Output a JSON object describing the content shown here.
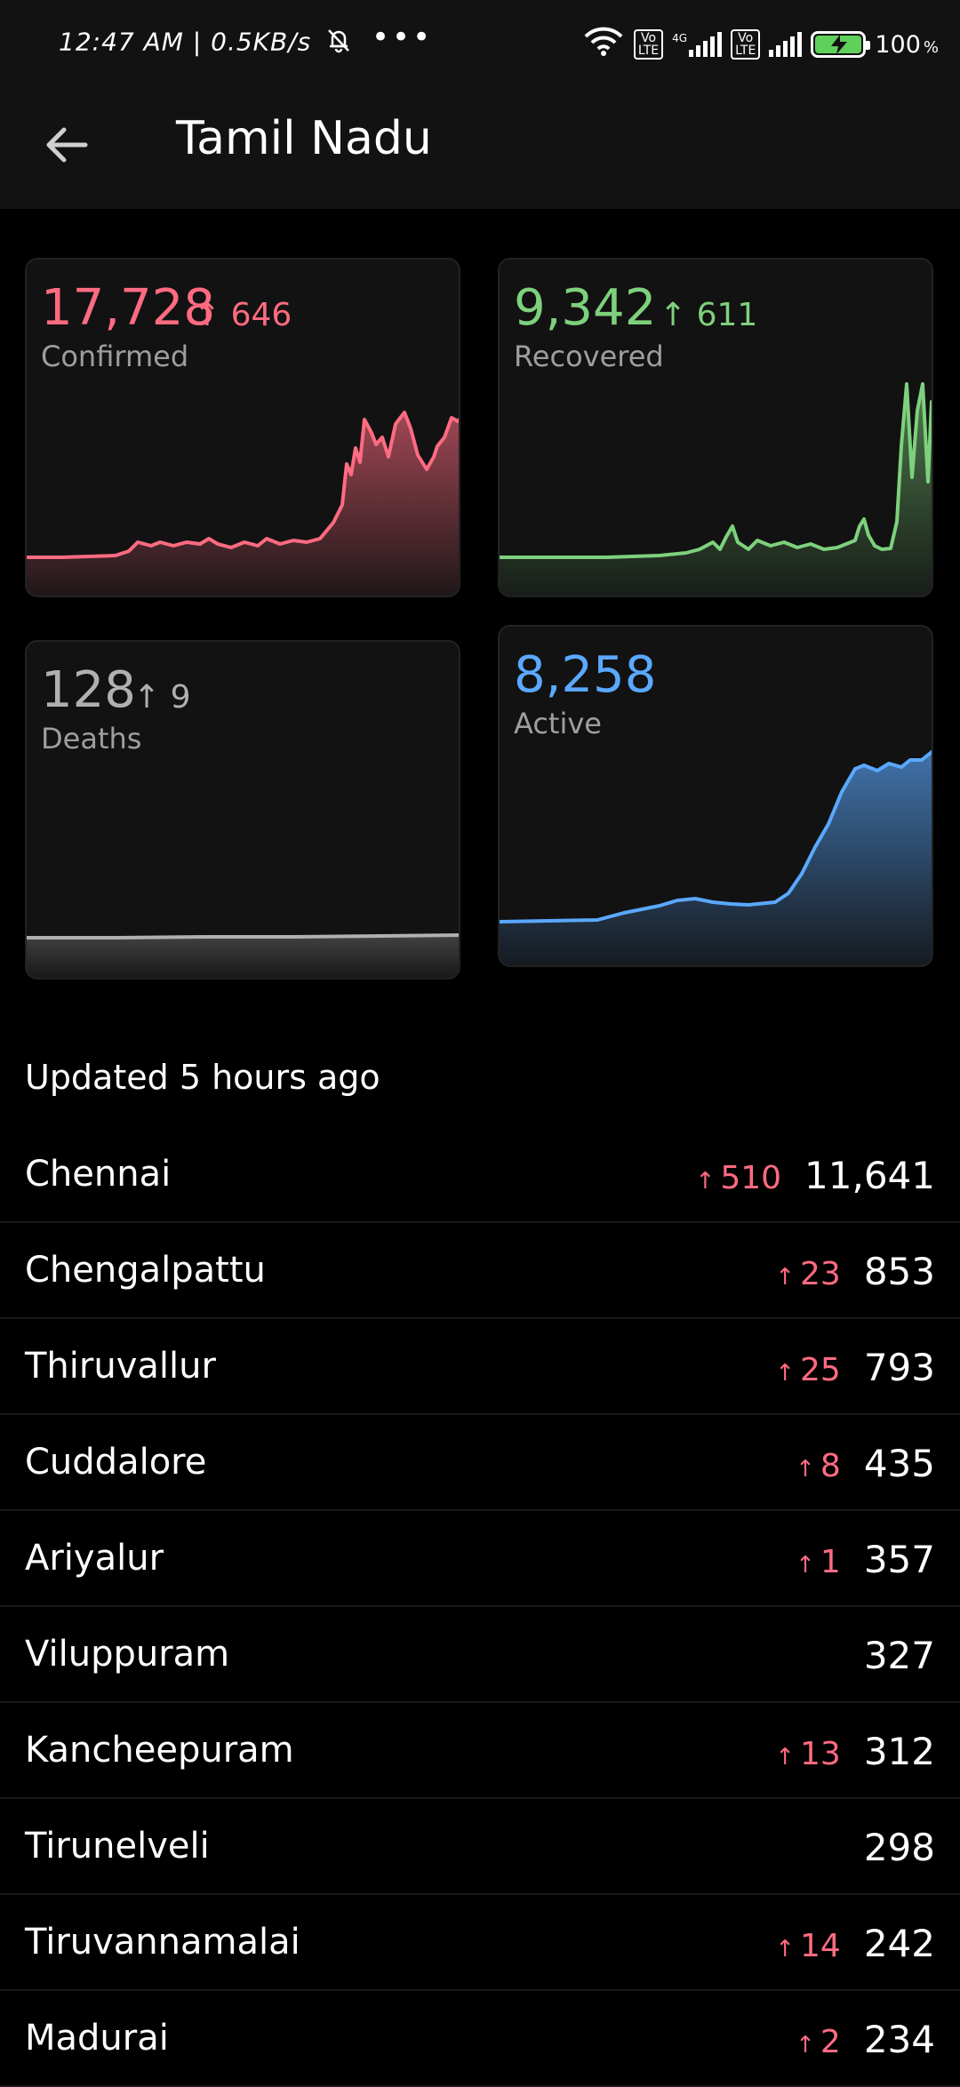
{
  "status_bar": {
    "time": "12:47 AM | 0.5KB/s",
    "more": "•••",
    "volte1": "Vo\nLTE",
    "net_4g": "4G",
    "volte2": "Vo\nLTE",
    "battery": "100",
    "battery_unit": "%"
  },
  "header": {
    "title": "Tamil Nadu"
  },
  "colors": {
    "confirmed": "#ff6b81",
    "recovered": "#7ed17c",
    "deaths": "#b0b0b0",
    "active": "#5aa8ff"
  },
  "cards": {
    "confirmed": {
      "value": "17,728",
      "delta": "↑ 646",
      "label": "Confirmed"
    },
    "recovered": {
      "value": "9,342",
      "delta": "↑ 611",
      "label": "Recovered"
    },
    "deaths": {
      "value": "128",
      "delta": "↑ 9",
      "label": "Deaths"
    },
    "active": {
      "value": "8,258",
      "label": "Active"
    }
  },
  "updated": "Updated 5 hours ago",
  "districts": [
    {
      "name": "Chennai",
      "delta": "510",
      "count": "11,641"
    },
    {
      "name": "Chengalpattu",
      "delta": "23",
      "count": "853"
    },
    {
      "name": "Thiruvallur",
      "delta": "25",
      "count": "793"
    },
    {
      "name": "Cuddalore",
      "delta": "8",
      "count": "435"
    },
    {
      "name": "Ariyalur",
      "delta": "1",
      "count": "357"
    },
    {
      "name": "Viluppuram",
      "delta": "",
      "count": "327"
    },
    {
      "name": "Kancheepuram",
      "delta": "13",
      "count": "312"
    },
    {
      "name": "Tirunelveli",
      "delta": "",
      "count": "298"
    },
    {
      "name": "Tiruvannamalai",
      "delta": "14",
      "count": "242"
    },
    {
      "name": "Madurai",
      "delta": "2",
      "count": "234"
    }
  ]
}
